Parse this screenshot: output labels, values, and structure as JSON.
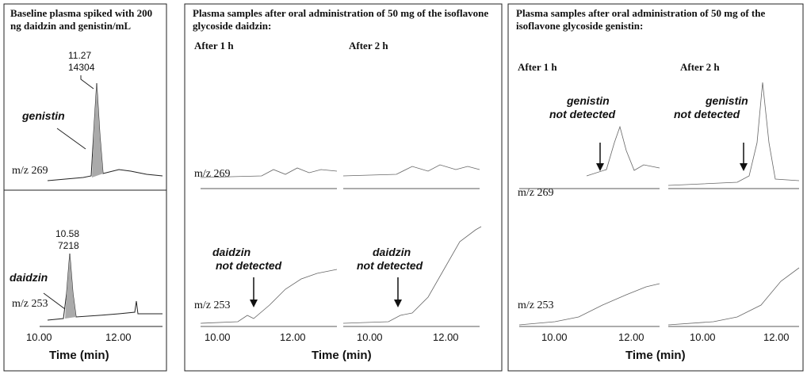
{
  "panels": [
    {
      "title": "Baseline plasma spiked with 200 ng daidzin and genistin/mL",
      "traces": [
        {
          "ion": "m/z 269",
          "peak_time": "11.27",
          "peak_area": "14304",
          "compound": "genistin"
        },
        {
          "ion": "m/z 253",
          "peak_time": "10.58",
          "peak_area": "7218",
          "compound": "daidzin"
        }
      ],
      "xticks": [
        "10.00",
        "12.00"
      ],
      "xlabel": "Time (min)"
    },
    {
      "title": "Plasma samples after oral administration of 50 mg of the isoflavone glycoside  daidzin:",
      "columns": [
        "After 1 h",
        "After 2 h"
      ],
      "traces": [
        {
          "ion": "m/z 269"
        },
        {
          "ion": "m/z 253",
          "note": [
            "daidzin",
            "not detected"
          ]
        }
      ],
      "xticks": [
        "10.00",
        "12.00",
        "10.00",
        "12.00"
      ],
      "xlabel": "Time (min)"
    },
    {
      "title": "Plasma samples after oral administration of 50 mg of the isoflavone glycoside  genistin:",
      "columns": [
        "After 1 h",
        "After 2 h"
      ],
      "traces": [
        {
          "ion": "m/z 269",
          "note": [
            "genistin",
            "not detected"
          ]
        },
        {
          "ion": "m/z 253"
        }
      ],
      "xticks": [
        "10.00",
        "12.00",
        "10.00",
        "12.00"
      ],
      "xlabel": "Time (min)"
    }
  ]
}
